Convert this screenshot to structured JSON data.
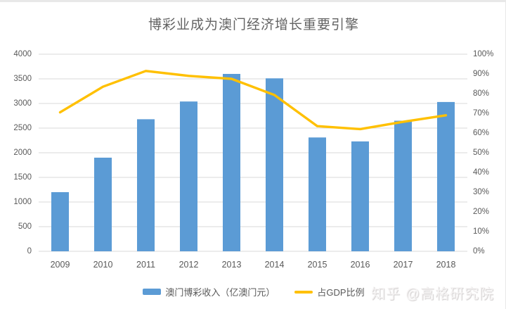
{
  "title": "博彩业成为澳门经济增长重要引擎",
  "watermark": "知乎 @高格研究院",
  "legend": {
    "bar_label": "澳门博彩收入（亿澳门元）",
    "line_label": "占GDP比例"
  },
  "colors": {
    "bar": "#5B9BD5",
    "line": "#FFC000",
    "grid": "#D9D9D9",
    "axis_text": "#595959",
    "title_text": "#636363",
    "frame_border": "#e8e8e8",
    "watermark": "#f6f4f4"
  },
  "chart_data": {
    "type": "bar+line combo",
    "title": "博彩业成为澳门经济增长重要引擎",
    "categories": [
      "2009",
      "2010",
      "2011",
      "2012",
      "2013",
      "2014",
      "2015",
      "2016",
      "2017",
      "2018"
    ],
    "series": [
      {
        "name": "澳门博彩收入（亿澳门元）",
        "type": "bar",
        "axis": "left",
        "values": [
          1200,
          1900,
          2680,
          3040,
          3600,
          3510,
          2310,
          2230,
          2650,
          3030
        ]
      },
      {
        "name": "占GDP比例",
        "type": "line",
        "axis": "right",
        "unit": "%",
        "values": [
          70.5,
          83.5,
          91.5,
          89,
          87.5,
          79.3,
          63.5,
          62,
          65.7,
          69
        ]
      }
    ],
    "left_axis": {
      "min": 0,
      "max": 4000,
      "step": 500,
      "ticks": [
        "0",
        "500",
        "1000",
        "1500",
        "2000",
        "2500",
        "3000",
        "3500",
        "4000"
      ]
    },
    "right_axis": {
      "min": 0,
      "max": 100,
      "step": 10,
      "ticks": [
        "0%",
        "10%",
        "20%",
        "30%",
        "40%",
        "50%",
        "60%",
        "70%",
        "80%",
        "90%",
        "100%"
      ]
    },
    "grid": "horizontal only",
    "legend_position": "bottom center"
  }
}
